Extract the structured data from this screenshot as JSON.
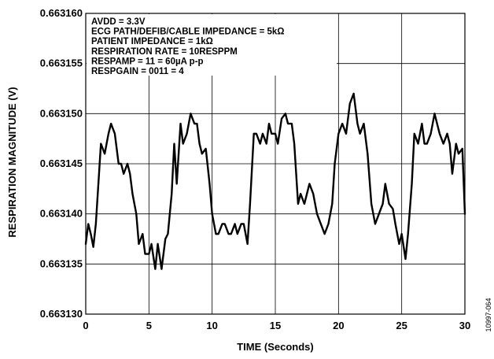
{
  "chart_data": {
    "type": "line",
    "xlabel": "TIME (Seconds)",
    "ylabel": "RESPIRATION  MAGNITUDE (V)",
    "xlim": [
      0,
      30
    ],
    "ylim": [
      0.66313,
      0.66316
    ],
    "x_ticks": [
      "0",
      "5",
      "10",
      "15",
      "20",
      "25",
      "30"
    ],
    "y_ticks": [
      "0.663130",
      "0.663135",
      "0.663140",
      "0.663145",
      "0.663150",
      "0.663155",
      "0.663160"
    ],
    "grid": true,
    "annotations": [
      "AVDD = 3.3V",
      "ECG PATH/DEFIB/CABLE IMPEDANCE = 5kΩ",
      "PATIENT IMPEDANCE = 1kΩ",
      "RESPIRATION RATE = 10RESPPM",
      "RESPAMP = 11 = 60µA p-p",
      "RESPGAIN = 0011 = 4"
    ],
    "figure_id": "10997-064",
    "series": [
      {
        "color": "#000000",
        "x": [
          0.0,
          0.2,
          0.4,
          0.6,
          0.8,
          1.0,
          1.2,
          1.5,
          1.8,
          2.0,
          2.3,
          2.6,
          2.8,
          3.0,
          3.3,
          3.5,
          3.7,
          4.0,
          4.2,
          4.5,
          4.7,
          5.0,
          5.2,
          5.5,
          5.7,
          6.0,
          6.3,
          6.5,
          6.8,
          7.0,
          7.2,
          7.5,
          7.7,
          8.0,
          8.3,
          8.6,
          8.8,
          9.0,
          9.2,
          9.5,
          9.8,
          10.0,
          10.3,
          10.5,
          10.8,
          11.0,
          11.3,
          11.5,
          11.8,
          12.0,
          12.3,
          12.5,
          12.8,
          13.0,
          13.3,
          13.5,
          13.8,
          14.0,
          14.3,
          14.5,
          14.7,
          15.0,
          15.2,
          15.5,
          15.8,
          16.0,
          16.3,
          16.5,
          16.8,
          17.0,
          17.3,
          17.5,
          17.7,
          18.0,
          18.3,
          18.6,
          18.9,
          19.2,
          19.5,
          19.7,
          20.0,
          20.3,
          20.6,
          20.9,
          21.2,
          21.5,
          21.7,
          22.0,
          22.3,
          22.6,
          22.9,
          23.2,
          23.5,
          23.7,
          24.0,
          24.3,
          24.5,
          24.8,
          25.0,
          25.3,
          25.5,
          25.8,
          26.0,
          26.3,
          26.6,
          26.8,
          27.0,
          27.3,
          27.6,
          27.8,
          28.0,
          28.3,
          28.6,
          28.8,
          29.0,
          29.3,
          29.5,
          29.8,
          30.0
        ],
        "y": [
          0.663137,
          0.663139,
          0.663138,
          0.6631367,
          0.663139,
          0.663143,
          0.663147,
          0.663146,
          0.663148,
          0.663149,
          0.663148,
          0.663145,
          0.663145,
          0.663144,
          0.663145,
          0.663144,
          0.663142,
          0.66314,
          0.663137,
          0.663138,
          0.663136,
          0.663136,
          0.663137,
          0.6631345,
          0.663137,
          0.6631345,
          0.6631375,
          0.663138,
          0.663142,
          0.663147,
          0.663143,
          0.663149,
          0.663147,
          0.663148,
          0.66315,
          0.663149,
          0.663149,
          0.663147,
          0.663146,
          0.6631465,
          0.663143,
          0.66314,
          0.663138,
          0.663138,
          0.663139,
          0.663139,
          0.663138,
          0.663138,
          0.663139,
          0.663138,
          0.663139,
          0.663139,
          0.663137,
          0.663141,
          0.663148,
          0.663148,
          0.663147,
          0.663148,
          0.663147,
          0.663149,
          0.663148,
          0.663148,
          0.663147,
          0.6631495,
          0.66315,
          0.663149,
          0.663149,
          0.663147,
          0.663141,
          0.663142,
          0.663141,
          0.663142,
          0.663143,
          0.663142,
          0.66314,
          0.663139,
          0.663138,
          0.663139,
          0.663141,
          0.663145,
          0.663148,
          0.663149,
          0.663148,
          0.663151,
          0.663152,
          0.663149,
          0.663148,
          0.663149,
          0.663146,
          0.663141,
          0.663139,
          0.66314,
          0.663141,
          0.663143,
          0.663141,
          0.6631405,
          0.663139,
          0.663137,
          0.663138,
          0.6631355,
          0.663138,
          0.663143,
          0.663148,
          0.663147,
          0.663149,
          0.663147,
          0.663147,
          0.663148,
          0.66315,
          0.663149,
          0.663148,
          0.663147,
          0.663148,
          0.663147,
          0.663144,
          0.663147,
          0.663146,
          0.6631465,
          0.66314
        ]
      }
    ]
  }
}
